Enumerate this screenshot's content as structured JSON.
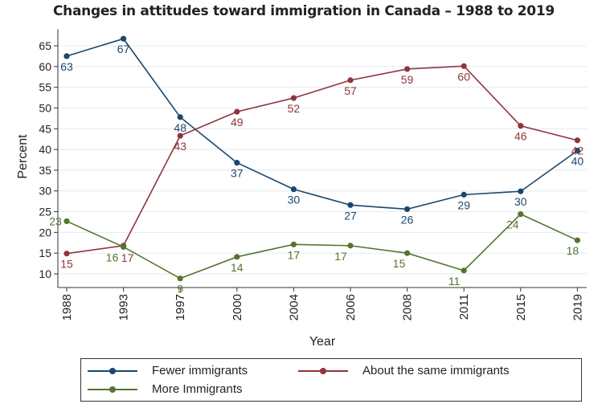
{
  "chart_data": {
    "type": "line",
    "title": "Changes in attitudes toward immigration in Canada – 1988 to 2019",
    "xlabel": "Year",
    "ylabel": "Percent",
    "categories": [
      "1988",
      "1993",
      "1997",
      "2000",
      "2004",
      "2006",
      "2008",
      "2011",
      "2015",
      "2019"
    ],
    "yticks": [
      10,
      15,
      20,
      25,
      30,
      35,
      40,
      45,
      50,
      55,
      60,
      65
    ],
    "ylim": [
      6.7,
      69
    ],
    "grid": true,
    "legend_position": "bottom",
    "series": [
      {
        "name": "Fewer immigrants",
        "color": "#1a476f",
        "values": [
          62.5,
          66.7,
          47.8,
          36.8,
          30.4,
          26.6,
          25.6,
          29.1,
          29.9,
          39.7
        ],
        "labels": [
          "63",
          "67",
          "48",
          "37",
          "30",
          "27",
          "26",
          "29",
          "30",
          "40"
        ]
      },
      {
        "name": "About the same immigrants",
        "color": "#90353b",
        "values": [
          14.9,
          16.8,
          43.3,
          49.1,
          52.4,
          56.7,
          59.4,
          60.1,
          45.7,
          42.2
        ],
        "labels": [
          "15",
          "17",
          "43",
          "49",
          "52",
          "57",
          "59",
          "60",
          "46",
          "42"
        ]
      },
      {
        "name": "More Immigrants",
        "color": "#55752f",
        "values": [
          22.7,
          16.5,
          8.9,
          14.1,
          17.1,
          16.8,
          15.0,
          10.8,
          24.4,
          18.1
        ],
        "labels": [
          "23",
          "16",
          "9",
          "14",
          "17",
          "17",
          "15",
          "11",
          "24",
          "18"
        ]
      }
    ]
  }
}
